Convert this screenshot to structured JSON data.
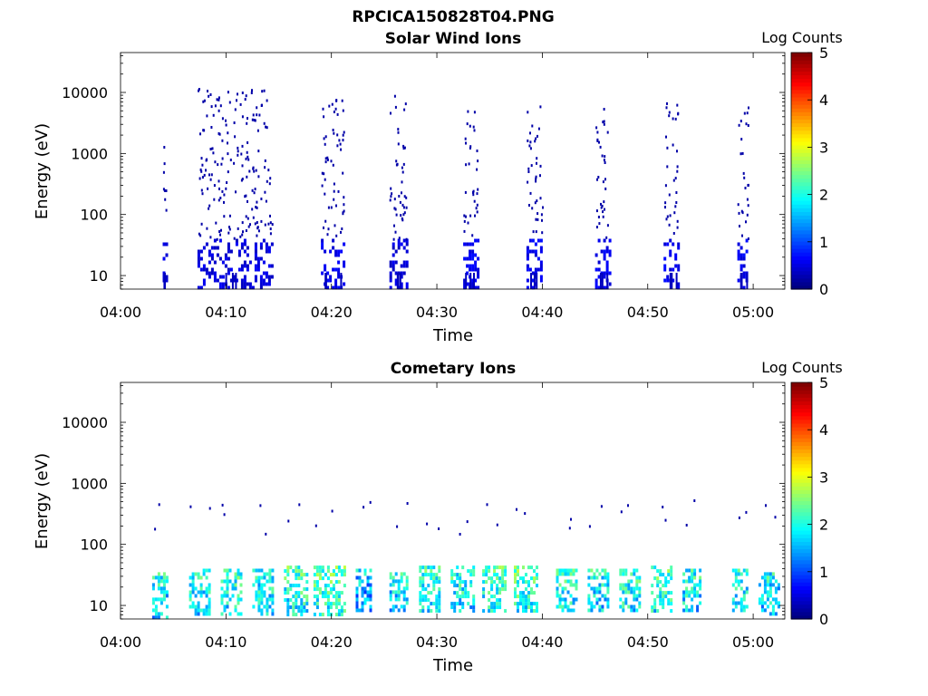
{
  "figure_title": "RPCICA150828T04.PNG",
  "chart_data": [
    {
      "type": "heatmap",
      "title": "Solar Wind Ions",
      "xlabel": "Time",
      "ylabel": "Energy (eV)",
      "yscale": "log",
      "ylim": [
        6,
        45000
      ],
      "xlim": [
        "04:00",
        "05:03"
      ],
      "xticks": [
        "04:00",
        "04:10",
        "04:20",
        "04:30",
        "04:40",
        "04:50",
        "05:00"
      ],
      "yticks": [
        "10",
        "100",
        "1000",
        "10000"
      ],
      "colorbar": {
        "label": "Log Counts",
        "range": [
          0,
          5
        ],
        "ticks": [
          "0",
          "1",
          "2",
          "3",
          "4",
          "5"
        ],
        "colormap": "jet"
      },
      "grid": false,
      "bursts": [
        {
          "t": 4.0,
          "t_end": 4.3,
          "e_low": 6,
          "e_high": 20000,
          "level": 0.3
        },
        {
          "t": 7.3,
          "t_end": 14.4,
          "e_low": 6,
          "e_high": 12000,
          "level": 0.3
        },
        {
          "t": 19.0,
          "t_end": 21.2,
          "e_low": 6,
          "e_high": 8000,
          "level": 0.4
        },
        {
          "t": 25.5,
          "t_end": 27.2,
          "e_low": 6,
          "e_high": 10000,
          "level": 0.3
        },
        {
          "t": 32.5,
          "t_end": 33.8,
          "e_low": 6,
          "e_high": 7000,
          "level": 0.4
        },
        {
          "t": 38.5,
          "t_end": 40.0,
          "e_low": 6,
          "e_high": 8000,
          "level": 0.4
        },
        {
          "t": 45.0,
          "t_end": 46.3,
          "e_low": 6,
          "e_high": 6000,
          "level": 0.4
        },
        {
          "t": 51.5,
          "t_end": 52.8,
          "e_low": 6,
          "e_high": 7000,
          "level": 0.4
        },
        {
          "t": 58.5,
          "t_end": 59.5,
          "e_low": 6,
          "e_high": 6000,
          "level": 0.4
        }
      ]
    },
    {
      "type": "heatmap",
      "title": "Cometary Ions",
      "xlabel": "Time",
      "ylabel": "Energy (eV)",
      "yscale": "log",
      "ylim": [
        6,
        45000
      ],
      "xlim": [
        "04:00",
        "05:03"
      ],
      "xticks": [
        "04:00",
        "04:10",
        "04:20",
        "04:30",
        "04:40",
        "04:50",
        "05:00"
      ],
      "yticks": [
        "10",
        "100",
        "1000",
        "10000"
      ],
      "colorbar": {
        "label": "Log Counts",
        "range": [
          0,
          5
        ],
        "ticks": [
          "0",
          "1",
          "2",
          "3",
          "4",
          "5"
        ],
        "colormap": "jet"
      },
      "grid": false,
      "bursts": [
        {
          "t": 3.0,
          "t_end": 4.5,
          "e_low": 6,
          "e_high": 35,
          "level": 1.9
        },
        {
          "t": 6.5,
          "t_end": 8.5,
          "e_low": 7,
          "e_high": 40,
          "level": 2.0
        },
        {
          "t": 9.5,
          "t_end": 11.5,
          "e_low": 7,
          "e_high": 40,
          "level": 2.1
        },
        {
          "t": 12.5,
          "t_end": 14.5,
          "e_low": 7,
          "e_high": 40,
          "level": 2.0
        },
        {
          "t": 15.5,
          "t_end": 17.8,
          "e_low": 7,
          "e_high": 45,
          "level": 2.2
        },
        {
          "t": 18.3,
          "t_end": 21.2,
          "e_low": 7,
          "e_high": 45,
          "level": 2.3
        },
        {
          "t": 22.3,
          "t_end": 23.8,
          "e_low": 8,
          "e_high": 40,
          "level": 1.6
        },
        {
          "t": 25.5,
          "t_end": 27.3,
          "e_low": 8,
          "e_high": 35,
          "level": 1.9
        },
        {
          "t": 28.3,
          "t_end": 30.3,
          "e_low": 8,
          "e_high": 45,
          "level": 2.1
        },
        {
          "t": 31.3,
          "t_end": 33.5,
          "e_low": 8,
          "e_high": 45,
          "level": 2.1
        },
        {
          "t": 34.3,
          "t_end": 36.5,
          "e_low": 8,
          "e_high": 45,
          "level": 2.2
        },
        {
          "t": 37.3,
          "t_end": 39.5,
          "e_low": 8,
          "e_high": 45,
          "level": 2.3
        },
        {
          "t": 41.3,
          "t_end": 43.3,
          "e_low": 8,
          "e_high": 40,
          "level": 2.1
        },
        {
          "t": 44.3,
          "t_end": 46.3,
          "e_low": 8,
          "e_high": 40,
          "level": 2.0
        },
        {
          "t": 47.3,
          "t_end": 49.3,
          "e_low": 8,
          "e_high": 40,
          "level": 2.1
        },
        {
          "t": 50.3,
          "t_end": 52.3,
          "e_low": 8,
          "e_high": 45,
          "level": 2.2
        },
        {
          "t": 53.3,
          "t_end": 55.0,
          "e_low": 8,
          "e_high": 40,
          "level": 2.0
        },
        {
          "t": 58.0,
          "t_end": 59.5,
          "e_low": 8,
          "e_high": 40,
          "level": 2.0
        },
        {
          "t": 60.5,
          "t_end": 62.5,
          "e_low": 7,
          "e_high": 35,
          "level": 1.9
        }
      ]
    }
  ]
}
